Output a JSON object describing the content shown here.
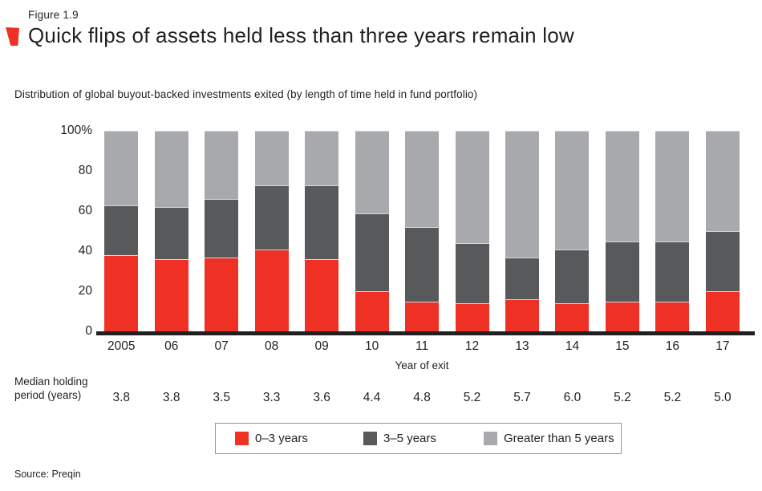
{
  "figure_label": "Figure 1.9",
  "title": "Quick flips of assets held less than three years remain low",
  "subtitle": "Distribution of global buyout-backed investments exited (by length of time held in fund portfolio)",
  "source": "Source: Preqin",
  "colors": {
    "red": "#ee3124",
    "dark_gray": "#58595b",
    "light_gray": "#a7a9ac",
    "axis_black": "#231f20",
    "segment_divider": "#d7d8d9"
  },
  "chart_data": {
    "type": "bar",
    "stacked": true,
    "unit": "percent",
    "categories": [
      "2005",
      "06",
      "07",
      "08",
      "09",
      "10",
      "11",
      "12",
      "13",
      "14",
      "15",
      "16",
      "17"
    ],
    "series": [
      {
        "name": "0–3 years",
        "color": "#ee3124",
        "values": [
          38,
          36,
          37,
          41,
          36,
          20,
          15,
          14,
          16,
          14,
          15,
          15,
          20
        ]
      },
      {
        "name": "3–5 years",
        "color": "#58595b",
        "values": [
          25,
          26,
          29,
          32,
          37,
          39,
          37,
          30,
          21,
          27,
          30,
          30,
          30
        ]
      },
      {
        "name": "Greater than 5 years",
        "color": "#a7a9ac",
        "values": [
          37,
          38,
          34,
          27,
          27,
          41,
          48,
          56,
          63,
          59,
          55,
          55,
          50
        ]
      }
    ],
    "xlabel": "Year of exit",
    "ylabel": "",
    "ylim": [
      0,
      100
    ],
    "y_ticks": [
      "100%",
      "80",
      "60",
      "40",
      "20",
      "0"
    ],
    "y_tick_values": [
      100,
      80,
      60,
      40,
      20,
      0
    ],
    "grid": false,
    "legend_position": "bottom"
  },
  "median_row": {
    "label_line1": "Median holding",
    "label_line2": "period (years)",
    "values": [
      "3.8",
      "3.8",
      "3.5",
      "3.3",
      "3.6",
      "4.4",
      "4.8",
      "5.2",
      "5.7",
      "6.0",
      "5.2",
      "5.2",
      "5.0"
    ]
  },
  "legend": {
    "items": [
      {
        "label": "0–3 years",
        "color": "#ee3124"
      },
      {
        "label": "3–5 years",
        "color": "#58595b"
      },
      {
        "label": "Greater than 5 years",
        "color": "#a7a9ac"
      }
    ]
  }
}
